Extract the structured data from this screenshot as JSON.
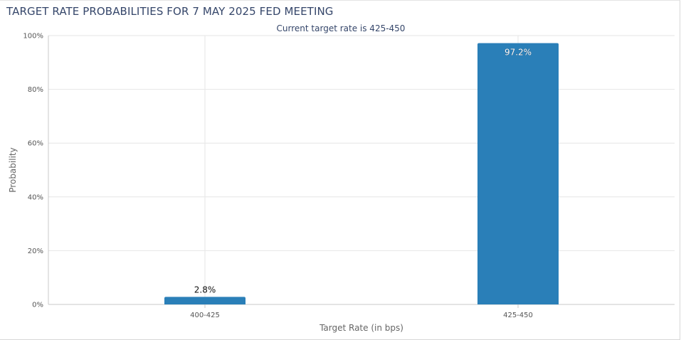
{
  "header": {
    "title": "TARGET RATE PROBABILITIES FOR 7 MAY 2025 FED MEETING"
  },
  "colors": {
    "bar": "#2a7fb8",
    "grid": "#e6e6e6",
    "axis": "#c8c8c8",
    "title": "#35466a"
  },
  "chart_data": {
    "type": "bar",
    "subtitle": "Current target rate is 425-450",
    "xlabel": "Target Rate (in bps)",
    "ylabel": "Probability",
    "categories": [
      "400-425",
      "425-450"
    ],
    "values": [
      2.8,
      97.2
    ],
    "data_labels": [
      "2.8%",
      "97.2%"
    ],
    "ylim": [
      0,
      100
    ],
    "yticks": [
      0,
      20,
      40,
      60,
      80,
      100
    ],
    "ytick_labels": [
      "0%",
      "20%",
      "40%",
      "60%",
      "80%",
      "100%"
    ],
    "grid": true
  }
}
